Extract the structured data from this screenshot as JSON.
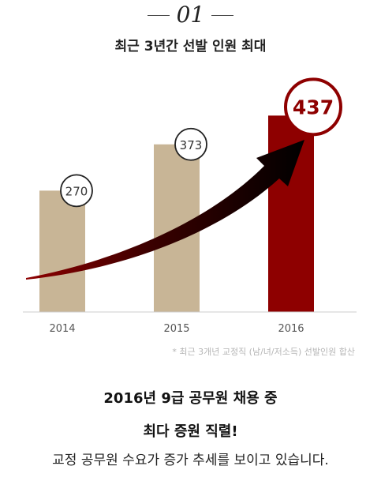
{
  "header": {
    "number": "01",
    "headline": "최근 3년간 선발 인원 최대"
  },
  "chart_data": {
    "type": "bar",
    "categories": [
      "2014",
      "2015",
      "2016"
    ],
    "values": [
      270,
      373,
      437
    ],
    "labels": [
      "270",
      "373",
      "437"
    ],
    "highlight_index": 2,
    "colors": {
      "normal": "#c8b596",
      "highlight": "#8e0000",
      "arrow": "#000000"
    },
    "ylim": [
      0,
      500
    ],
    "footnote": "* 최근 3개년 교정직 (남/녀/저소득) 선발인원 합산"
  },
  "body": {
    "line1": "2016년 9급 공무원 채용 중",
    "line2": "최다 증원 직렬!",
    "line3": "교정 공무원 수요가 증가 추세를 보이고 있습니다."
  }
}
